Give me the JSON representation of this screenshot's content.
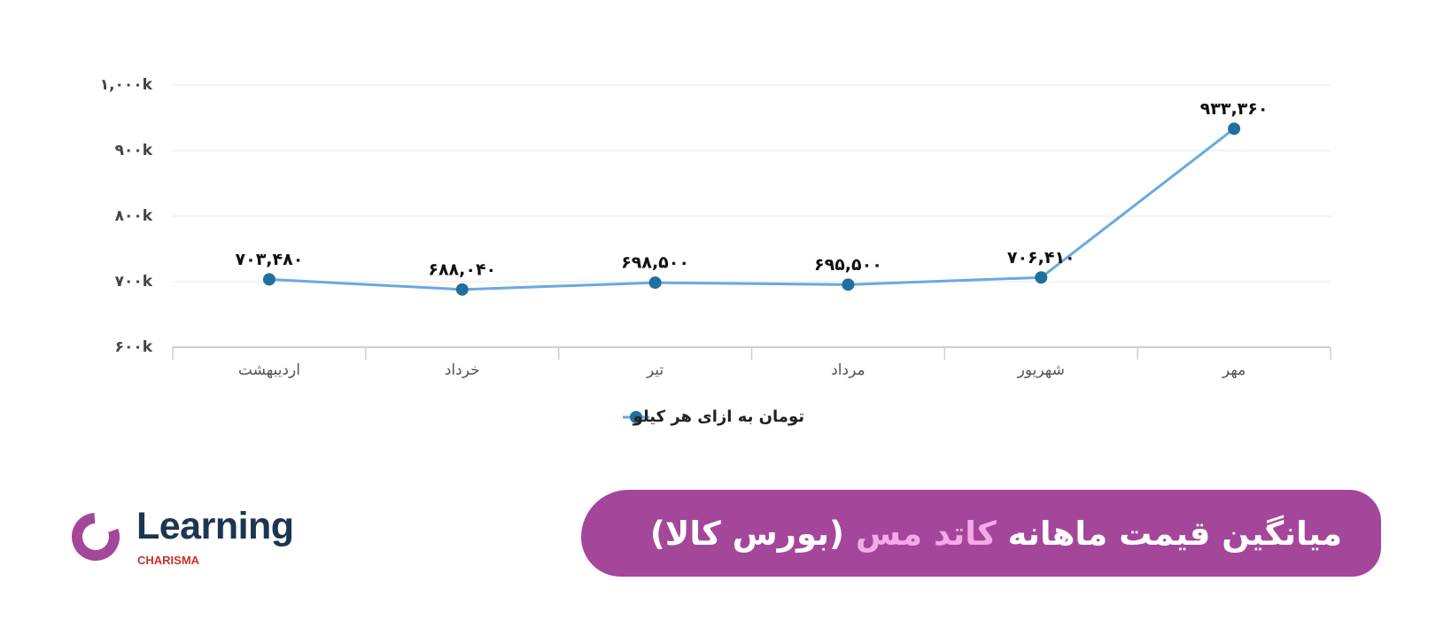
{
  "chart_data": {
    "type": "line",
    "categories": [
      "اردیبهشت",
      "خرداد",
      "تیر",
      "مرداد",
      "شهریور",
      "مهر"
    ],
    "series": [
      {
        "name": "تومان به ازای هر کیلو",
        "color": "#6aa9e0",
        "marker_color": "#1f6f9f",
        "values": [
          703480,
          688040,
          698500,
          695500,
          706410,
          933360
        ],
        "value_labels": [
          "۷۰۳,۴۸۰",
          "۶۸۸,۰۴۰",
          "۶۹۸,۵۰۰",
          "۶۹۵,۵۰۰",
          "۷۰۶,۴۱۰",
          "۹۳۳,۳۶۰"
        ]
      }
    ],
    "ylim": [
      600000,
      1000000
    ],
    "yticks": [
      {
        "value": 600000,
        "label": "۶۰۰k"
      },
      {
        "value": 700000,
        "label": "۷۰۰k"
      },
      {
        "value": 800000,
        "label": "۸۰۰k"
      },
      {
        "value": 900000,
        "label": "۹۰۰k"
      },
      {
        "value": 1000000,
        "label": "۱,۰۰۰k"
      }
    ],
    "grid": true,
    "legend": "bottom"
  },
  "banner": {
    "title_start": "میانگین قیمت ماهانه",
    "title_highlight": "کاتد مس",
    "title_end": "(بورس کالا)"
  },
  "logo": {
    "name": "Learning",
    "brand": "CHARISMA"
  }
}
